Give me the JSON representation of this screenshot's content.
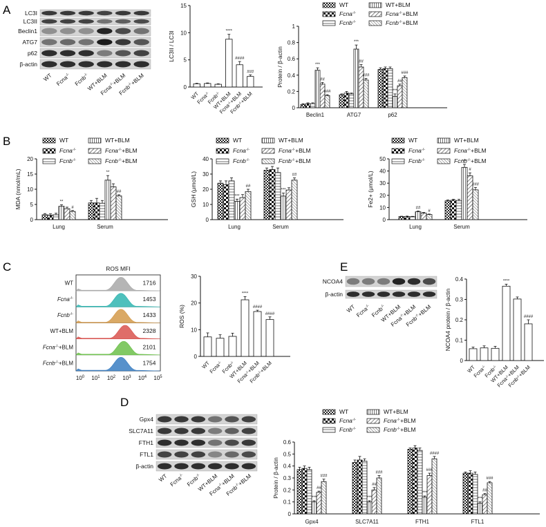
{
  "panel_labels": {
    "A": "A",
    "B": "B",
    "C": "C",
    "D": "D",
    "E": "E"
  },
  "groups": [
    "WT",
    "Fcna-/-",
    "Fcnb-/-",
    "WT+BLM",
    "Fcna-/-+BLM",
    "Fcnb-/-+BLM"
  ],
  "legend": {
    "wt": "WT",
    "fcna": "Fcna",
    "fcnb": "Fcnb",
    "wtblm": "WT+BLM",
    "blm": "+BLM",
    "sup": "-/-"
  },
  "blots": {
    "A": {
      "rows": [
        "LC3I",
        "LC3II",
        "Beclin1",
        "ATG7",
        "p62",
        "β-actin"
      ]
    },
    "D": {
      "rows": [
        "Gpx4",
        "SLC7A11",
        "FTH1",
        "FTL1",
        "β-actin"
      ]
    },
    "E": {
      "rows": [
        "NCOA4",
        "β-actin"
      ]
    }
  },
  "flow": {
    "title": "ROS  MFI",
    "samples": [
      "WT",
      "Fcna-/-",
      "Fcnb-/-",
      "WT+BLM",
      "Fcna-/-+BLM",
      "Fcnb-/-+BLM"
    ],
    "mfi": [
      "1716",
      "1453",
      "1433",
      "2328",
      "2101",
      "1754"
    ],
    "colors": [
      "#a8a8a8",
      "#2fb5b0",
      "#d49a4a",
      "#d9534f",
      "#6cc04a",
      "#3a7ec2"
    ],
    "x_ticks": [
      "0",
      "1",
      "2",
      "3",
      "4",
      "5"
    ]
  },
  "chart_data": [
    {
      "id": "A_lc3",
      "type": "bar",
      "title": "",
      "ylabel": "LC3II / LC3I",
      "ylim": [
        0,
        15
      ],
      "yticks": [
        0,
        5,
        10,
        15
      ],
      "categories": [
        "WT",
        "Fcna-/-",
        "Fcnb-/-",
        "WT+BLM",
        "Fcna-/-+BLM",
        "Fcnb-/-+BLM"
      ],
      "values": [
        0.6,
        0.65,
        0.5,
        8.8,
        4.1,
        1.95
      ],
      "errors": [
        0.1,
        0.1,
        0.1,
        0.9,
        0.6,
        0.3
      ],
      "annotations": [
        "",
        "",
        "",
        "****",
        "####",
        "###"
      ]
    },
    {
      "id": "A_prot",
      "type": "bar",
      "ylabel": "Protein / β-actin",
      "ylim": [
        0,
        1.0
      ],
      "yticks": [
        0,
        0.2,
        0.4,
        0.6,
        0.8,
        1.0
      ],
      "categories": [
        "Beclin1",
        "ATG7",
        "p62"
      ],
      "series": [
        {
          "name": "WT",
          "values": [
            0.04,
            0.16,
            0.47
          ],
          "errors": [
            0.01,
            0.01,
            0.02
          ],
          "ann": [
            "",
            "",
            ""
          ]
        },
        {
          "name": "Fcna-/-",
          "values": [
            0.05,
            0.18,
            0.48
          ],
          "errors": [
            0.01,
            0.02,
            0.02
          ],
          "ann": [
            "",
            "",
            ""
          ]
        },
        {
          "name": "Fcnb-/-",
          "values": [
            0.05,
            0.17,
            0.48
          ],
          "errors": [
            0.01,
            0.01,
            0.02
          ],
          "ann": [
            "",
            "",
            ""
          ]
        },
        {
          "name": "WT+BLM",
          "values": [
            0.46,
            0.72,
            0.14
          ],
          "errors": [
            0.03,
            0.05,
            0.03
          ],
          "ann": [
            "***",
            "***",
            "***"
          ]
        },
        {
          "name": "Fcna-/-+BLM",
          "values": [
            0.29,
            0.5,
            0.27
          ],
          "errors": [
            0.02,
            0.03,
            0.02
          ],
          "ann": [
            "##",
            "##",
            "##"
          ]
        },
        {
          "name": "Fcnb-/-+BLM",
          "values": [
            0.15,
            0.34,
            0.37
          ],
          "errors": [
            0.01,
            0.02,
            0.02
          ],
          "ann": [
            "###",
            "###",
            "###"
          ]
        }
      ]
    },
    {
      "id": "B_mda",
      "type": "bar",
      "ylabel": "MDA (nmol/mL)",
      "ylim": [
        0,
        20
      ],
      "yticks": [
        0,
        5,
        10,
        15,
        20
      ],
      "categories": [
        "Lung",
        "Serum"
      ],
      "series": [
        {
          "name": "WT",
          "values": [
            1.6,
            5.5
          ],
          "errors": [
            0.4,
            0.8
          ],
          "ann": [
            "",
            ""
          ]
        },
        {
          "name": "Fcna-/-",
          "values": [
            1.5,
            5.5
          ],
          "errors": [
            0.4,
            1.5
          ],
          "ann": [
            "",
            ""
          ]
        },
        {
          "name": "Fcnb-/-",
          "values": [
            1.6,
            5.4
          ],
          "errors": [
            0.5,
            0.9
          ],
          "ann": [
            "",
            ""
          ]
        },
        {
          "name": "WT+BLM",
          "values": [
            4.4,
            13.0
          ],
          "errors": [
            0.5,
            1.5
          ],
          "ann": [
            "**",
            "**"
          ]
        },
        {
          "name": "Fcna-/-+BLM",
          "values": [
            3.6,
            10.8
          ],
          "errors": [
            0.5,
            1.0
          ],
          "ann": [
            "",
            ""
          ]
        },
        {
          "name": "Fcnb-/-+BLM",
          "values": [
            2.7,
            7.8
          ],
          "errors": [
            0.3,
            0.4
          ],
          "ann": [
            "#",
            "##"
          ]
        }
      ]
    },
    {
      "id": "B_gsh",
      "type": "bar",
      "ylabel": "GSH (μmol/L)",
      "ylim": [
        0,
        40
      ],
      "yticks": [
        0,
        10,
        20,
        30,
        40
      ],
      "categories": [
        "Lung",
        "Serum"
      ],
      "series": [
        {
          "name": "WT",
          "values": [
            24,
            32.5
          ],
          "errors": [
            1.5,
            1.5
          ],
          "ann": [
            "",
            ""
          ]
        },
        {
          "name": "Fcna-/-",
          "values": [
            23,
            33
          ],
          "errors": [
            2.5,
            2.0
          ],
          "ann": [
            "",
            ""
          ]
        },
        {
          "name": "Fcnb-/-",
          "values": [
            25.5,
            31
          ],
          "errors": [
            2,
            3
          ],
          "ann": [
            "",
            ""
          ]
        },
        {
          "name": "WT+BLM",
          "values": [
            12,
            15.5
          ],
          "errors": [
            1.5,
            2
          ],
          "ann": [
            "***",
            "***"
          ]
        },
        {
          "name": "Fcna-/-+BLM",
          "values": [
            14.5,
            19.5
          ],
          "errors": [
            2,
            1.5
          ],
          "ann": [
            "",
            ""
          ]
        },
        {
          "name": "Fcnb-/-+BLM",
          "values": [
            18.5,
            26
          ],
          "errors": [
            1.5,
            1.5
          ],
          "ann": [
            "##",
            "##"
          ]
        }
      ]
    },
    {
      "id": "B_fe",
      "type": "bar",
      "ylabel": "Fe2+ (μmol/L)",
      "ylim": [
        0,
        50
      ],
      "yticks": [
        0,
        10,
        20,
        30,
        40,
        50
      ],
      "categories": [
        "Lung",
        "Serum"
      ],
      "series": [
        {
          "name": "WT",
          "values": [
            2.5,
            15.5
          ],
          "errors": [
            0.3,
            0.7
          ],
          "ann": [
            "",
            ""
          ]
        },
        {
          "name": "Fcna-/-",
          "values": [
            2.6,
            16
          ],
          "errors": [
            0.3,
            0.8
          ],
          "ann": [
            "",
            ""
          ]
        },
        {
          "name": "Fcnb-/-",
          "values": [
            2.4,
            15.5
          ],
          "errors": [
            0.3,
            1.2
          ],
          "ann": [
            "",
            ""
          ]
        },
        {
          "name": "WT+BLM",
          "values": [
            6.5,
            43
          ],
          "errors": [
            0.6,
            2.5
          ],
          "ann": [
            "##",
            "***"
          ]
        },
        {
          "name": "Fcna-/-+BLM",
          "values": [
            5.4,
            36
          ],
          "errors": [
            0.5,
            2.5
          ],
          "ann": [
            "",
            ""
          ]
        },
        {
          "name": "Fcnb-/-+BLM",
          "values": [
            4.2,
            24.5
          ],
          "errors": [
            0.4,
            2
          ]
        }
      ],
      "ann_override": {
        "3": [
          "##",
          "***"
        ],
        "4": [
          "",
          "#"
        ],
        "5": [
          "#",
          "###"
        ]
      }
    },
    {
      "id": "C_ros",
      "type": "bar",
      "ylabel": "ROS (%)",
      "ylim": [
        0,
        30
      ],
      "yticks": [
        0,
        10,
        20,
        30
      ],
      "categories": [
        "WT",
        "Fcna-/-",
        "Fcnb-/-",
        "WT+BLM",
        "Fcna-/-+BLM",
        "Fcnb-/-+BLM"
      ],
      "values": [
        7.3,
        6.8,
        7.5,
        21.2,
        16.8,
        13.8
      ],
      "errors": [
        1.5,
        1.3,
        1.2,
        1.2,
        0.5,
        1.0
      ],
      "annotations": [
        "",
        "",
        "",
        "****",
        "####",
        "####"
      ]
    },
    {
      "id": "E_ncoa4",
      "type": "bar",
      "ylabel": "NCOA4 protein / β-actin",
      "ylim": [
        0,
        0.4
      ],
      "yticks": [
        0,
        0.1,
        0.2,
        0.3,
        0.4
      ],
      "categories": [
        "WT",
        "Fcna-/-",
        "Fcnb-/-",
        "WT+BLM",
        "Fcna-/-+BLM",
        "Fcnb-/-+BLM"
      ],
      "values": [
        0.058,
        0.062,
        0.06,
        0.365,
        0.302,
        0.18
      ],
      "errors": [
        0.008,
        0.01,
        0.01,
        0.01,
        0.01,
        0.02
      ],
      "annotations": [
        "",
        "",
        "",
        "****",
        "",
        "####"
      ]
    },
    {
      "id": "D_prot",
      "type": "bar",
      "ylabel": "Protein / β-actin",
      "ylim": [
        0,
        0.6
      ],
      "yticks": [
        0,
        0.1,
        0.2,
        0.3,
        0.4,
        0.5,
        0.6
      ],
      "categories": [
        "Gpx4",
        "SLC7A11",
        "FTH1",
        "FTL1"
      ],
      "series": [
        {
          "name": "WT",
          "values": [
            0.37,
            0.43,
            0.54,
            0.34
          ],
          "errors": [
            0.02,
            0.02,
            0.01,
            0.01
          ],
          "ann": [
            "",
            "",
            "",
            ""
          ]
        },
        {
          "name": "Fcna-/-",
          "values": [
            0.38,
            0.45,
            0.55,
            0.34
          ],
          "errors": [
            0.02,
            0.03,
            0.02,
            0.02
          ],
          "ann": [
            "",
            "",
            "",
            ""
          ]
        },
        {
          "name": "Fcnb-/-",
          "values": [
            0.37,
            0.44,
            0.53,
            0.33
          ],
          "errors": [
            0.02,
            0.02,
            0.02,
            0.02
          ],
          "ann": [
            "",
            "",
            "",
            ""
          ]
        },
        {
          "name": "WT+BLM",
          "values": [
            0.1,
            0.1,
            0.14,
            0.09
          ],
          "errors": [
            0.01,
            0.01,
            0.01,
            0.01
          ],
          "ann": [
            "***",
            "***",
            "***",
            "***"
          ]
        },
        {
          "name": "Fcna-/-+BLM",
          "values": [
            0.18,
            0.2,
            0.32,
            0.16
          ],
          "errors": [
            0.01,
            0.02,
            0.02,
            0.01
          ],
          "ann": [
            "##",
            "##",
            "###",
            "##"
          ]
        },
        {
          "name": "Fcnb-/-+BLM",
          "values": [
            0.27,
            0.3,
            0.46,
            0.26
          ],
          "errors": [
            0.02,
            0.02,
            0.02,
            0.01
          ],
          "ann": [
            "###",
            "###",
            "####",
            "###"
          ]
        }
      ]
    }
  ]
}
